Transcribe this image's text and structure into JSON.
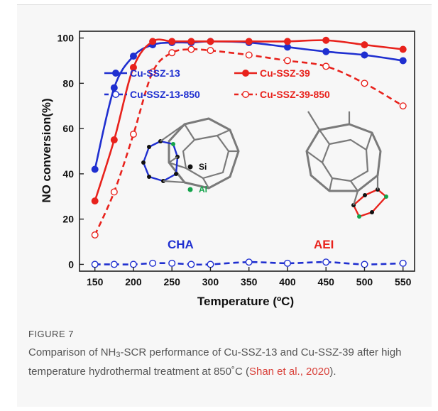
{
  "figure": {
    "label": "FIGURE 7",
    "caption_pre": "Comparison of NH",
    "caption_sub": "3",
    "caption_mid": "-SCR performance of Cu-SSZ-13 and Cu-SSZ-39 after high temperature hydrothermal treatment at 850˚C (",
    "caption_cite": "Shan et al., 2020",
    "caption_end": ")."
  },
  "insets": {
    "legend_si": "Si",
    "legend_al": "Al",
    "cha_label": "CHA",
    "aei_label": "AEI"
  },
  "chart_data": {
    "type": "line",
    "xlabel": "Temperature (ºC)",
    "ylabel": "NO conversion(%)",
    "xlim": [
      130,
      565
    ],
    "ylim": [
      -3,
      103
    ],
    "xticks": [
      150,
      200,
      250,
      300,
      350,
      400,
      450,
      500,
      550
    ],
    "yticks": [
      0,
      20,
      40,
      60,
      80,
      100
    ],
    "grid": false,
    "legend_position": "top, in two rows",
    "series": [
      {
        "name": "Cu-SSZ-13",
        "color": "#1f2fd0",
        "line": "solid",
        "marker": "filled",
        "x": [
          150,
          175,
          200,
          225,
          250,
          275,
          300,
          350,
          400,
          450,
          500,
          550
        ],
        "y": [
          42,
          78,
          92,
          97,
          98,
          98,
          98.5,
          98,
          96,
          94,
          92.5,
          90
        ]
      },
      {
        "name": "Cu-SSZ-39",
        "color": "#e8221c",
        "line": "solid",
        "marker": "filled",
        "x": [
          150,
          175,
          200,
          225,
          250,
          275,
          300,
          350,
          400,
          450,
          500,
          550
        ],
        "y": [
          28,
          55,
          87,
          98.5,
          98.5,
          98.5,
          98.5,
          98.5,
          98.5,
          99,
          97,
          95
        ]
      },
      {
        "name": "Cu-SSZ-13-850",
        "color": "#1f2fd0",
        "line": "dashed",
        "marker": "open",
        "x": [
          150,
          175,
          200,
          225,
          250,
          275,
          300,
          350,
          400,
          450,
          500,
          550
        ],
        "y": [
          0,
          0,
          0,
          0.5,
          0.5,
          0,
          0,
          1,
          0.5,
          1,
          0,
          0.5
        ]
      },
      {
        "name": "Cu-SSZ-39-850",
        "color": "#e8221c",
        "line": "dashed",
        "marker": "open",
        "x": [
          150,
          175,
          200,
          225,
          250,
          275,
          300,
          350,
          400,
          450,
          500,
          550
        ],
        "y": [
          13,
          32,
          57.5,
          85,
          93.5,
          95,
          94.5,
          92.5,
          90,
          87.5,
          80,
          70
        ]
      }
    ]
  }
}
